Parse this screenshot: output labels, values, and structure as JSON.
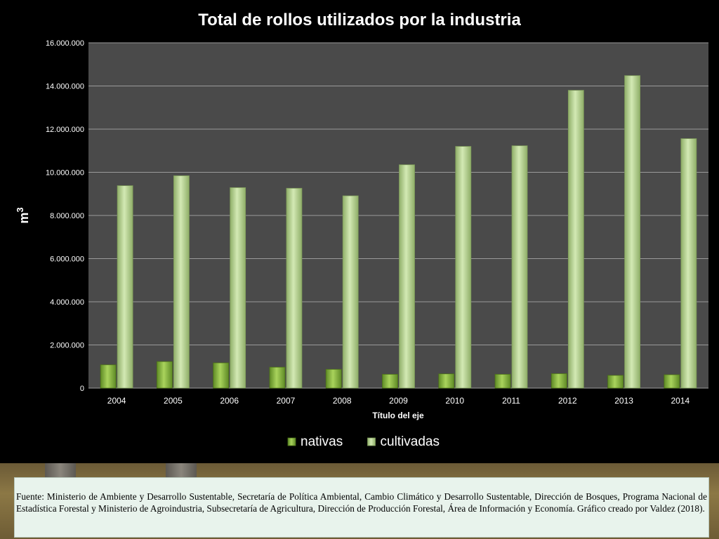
{
  "chart_data": {
    "type": "bar",
    "title": "Total de rollos utilizados por la industria",
    "xlabel": "Título del eje",
    "ylabel": "m3",
    "ylabel_base": "m",
    "ylabel_sup": "3",
    "ylim": [
      0,
      16000000
    ],
    "yticks": [
      0,
      2000000,
      4000000,
      6000000,
      8000000,
      10000000,
      12000000,
      14000000,
      16000000
    ],
    "ytick_labels": [
      "0",
      "2.000.000",
      "4.000.000",
      "6.000.000",
      "8.000.000",
      "10.000.000",
      "12.000.000",
      "14.000.000",
      "16.000.000"
    ],
    "categories": [
      "2004",
      "2005",
      "2006",
      "2007",
      "2008",
      "2009",
      "2010",
      "2011",
      "2012",
      "2013",
      "2014"
    ],
    "series": [
      {
        "name": "nativas",
        "color": "#7aa83a",
        "values": [
          1080000,
          1230000,
          1170000,
          970000,
          870000,
          640000,
          660000,
          640000,
          670000,
          590000,
          620000
        ]
      },
      {
        "name": "cultivadas",
        "color": "#b7d590",
        "values": [
          9380000,
          9840000,
          9290000,
          9260000,
          8910000,
          10350000,
          11200000,
          11230000,
          13800000,
          14480000,
          11560000
        ]
      }
    ],
    "grid": true,
    "legend_position": "bottom",
    "plot_background": "#4a4a4a"
  },
  "source": {
    "text": "Fuente: Ministerio de Ambiente y Desarrollo Sustentable, Secretaría de Política Ambiental, Cambio Climático y Desarrollo Sustentable, Dirección de Bosques, Programa Nacional de Estadística Forestal y Ministerio de Agroindustria, Subsecretaría de Agricultura, Dirección de Producción Forestal,  Área de Información y Economía. Gráfico creado por Valdez (2018)."
  }
}
